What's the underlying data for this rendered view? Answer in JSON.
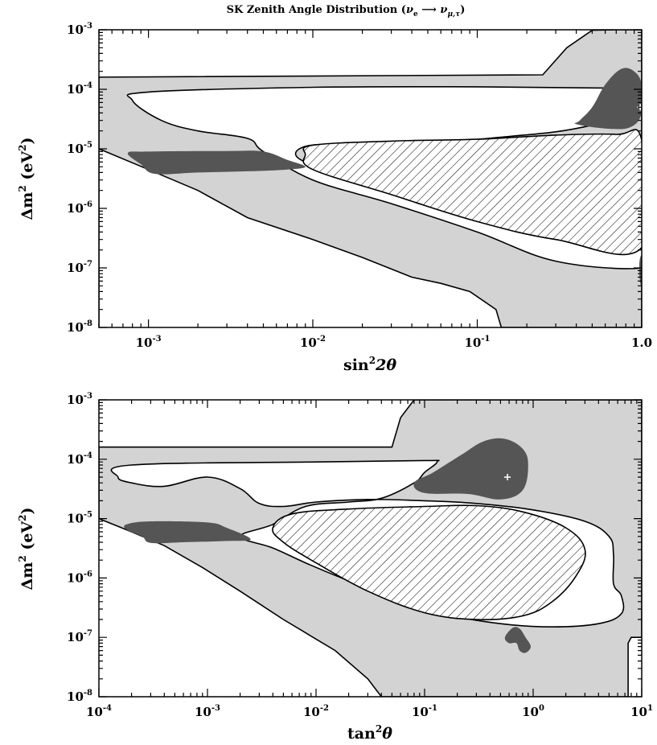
{
  "colors": {
    "light_region": "#d3d3d3",
    "dark_region": "#555555",
    "line": "#000000",
    "background": "#ffffff"
  },
  "chart_data": [
    {
      "type": "area",
      "title": "SK Zenith Angle Distribution (ν_e ⟶ ν_μ,τ)",
      "title_parts": {
        "prefix": "SK Zenith Angle Distribution (",
        "nu": "ν",
        "e": "e",
        "mu_tau": "μ,τ",
        "suffix": ")"
      },
      "xlabel": {
        "base": "sin",
        "sup": "2",
        "rest": "2θ"
      },
      "ylabel": {
        "base": "Δm",
        "sup1": "2",
        "unit_open": " (eV",
        "sup2": "2",
        "unit_close": ")"
      },
      "x_scale": "log",
      "y_scale": "log",
      "xlim": [
        0.0005,
        1
      ],
      "ylim": [
        1e-08,
        0.001
      ],
      "x_ticks": [
        {
          "value": 0.001,
          "base": "10",
          "exp": "-3"
        },
        {
          "value": 0.01,
          "base": "10",
          "exp": "-2"
        },
        {
          "value": 0.1,
          "base": "10",
          "exp": "-1"
        },
        {
          "value": 1,
          "base": "1",
          "exp": "0",
          "text": "1.0"
        }
      ],
      "y_ticks": [
        {
          "value": 1e-08,
          "exp": "-8"
        },
        {
          "value": 1e-07,
          "exp": "-7"
        },
        {
          "value": 1e-06,
          "exp": "-6"
        },
        {
          "value": 1e-05,
          "exp": "-5"
        },
        {
          "value": 0.0001,
          "exp": "-4"
        },
        {
          "value": 0.001,
          "exp": "-3"
        }
      ],
      "best_fit": {
        "x": 0.98,
        "y": 5e-05
      },
      "gray_region": [
        [
          0.0005,
          1e-08
        ],
        [
          0.0005,
          0.00016
        ],
        [
          0.25,
          0.000175
        ],
        [
          0.35,
          0.0005
        ],
        [
          0.5,
          0.00098
        ],
        [
          0.7,
          0.001
        ],
        [
          1,
          0.001
        ],
        [
          1,
          1e-08
        ],
        [
          0.14,
          1e-08
        ],
        [
          0.13,
          2e-08
        ],
        [
          0.09,
          4e-08
        ],
        [
          0.06,
          5.5e-08
        ],
        [
          0.04,
          7e-08
        ],
        [
          0.02,
          1.5e-07
        ],
        [
          0.01,
          3e-07
        ],
        [
          0.004,
          7e-07
        ],
        [
          0.002,
          2e-06
        ],
        [
          0.001,
          4.5e-06
        ],
        [
          0.0005,
          1e-05
        ]
      ],
      "white_hole": [
        [
          0.0008,
          6.5e-05
        ],
        [
          0.001,
          9e-05
        ],
        [
          0.01,
          0.000108
        ],
        [
          0.1,
          0.00011
        ],
        [
          0.6,
          0.000105
        ],
        [
          1,
          0.0001
        ],
        [
          1,
          4.5e-05
        ],
        [
          0.4,
          2.2e-05
        ],
        [
          0.15,
          1.6e-05
        ],
        [
          0.06,
          1.3e-05
        ],
        [
          0.02,
          1.2e-05
        ],
        [
          0.009,
          1.1e-05
        ],
        [
          0.009,
          6e-06
        ],
        [
          0.03,
          2.7e-06
        ],
        [
          0.1,
          9e-07
        ],
        [
          0.3,
          3.3e-07
        ],
        [
          1,
          2e-07
        ],
        [
          1,
          1e-07
        ],
        [
          0.3,
          1.3e-07
        ],
        [
          0.1,
          4e-07
        ],
        [
          0.03,
          1.2e-06
        ],
        [
          0.01,
          3e-06
        ],
        [
          0.005,
          9e-06
        ],
        [
          0.004,
          1.5e-05
        ],
        [
          0.002,
          2e-05
        ],
        [
          0.0012,
          3e-05
        ]
      ],
      "hatched_region": [
        [
          0.009,
          8e-06
        ],
        [
          0.01,
          1.15e-05
        ],
        [
          0.03,
          1.35e-05
        ],
        [
          0.1,
          1.45e-05
        ],
        [
          0.3,
          1.7e-05
        ],
        [
          0.7,
          1.75e-05
        ],
        [
          1,
          1.4e-05
        ],
        [
          1,
          2.2e-07
        ],
        [
          0.3,
          3e-07
        ],
        [
          0.1,
          6e-07
        ],
        [
          0.03,
          1.7e-06
        ],
        [
          0.01,
          4.5e-06
        ]
      ],
      "dark_regions": [
        [
          [
            0.00075,
            8.5e-06
          ],
          [
            0.001,
            9e-06
          ],
          [
            0.003,
            9.2e-06
          ],
          [
            0.005,
            9e-06
          ],
          [
            0.007,
            6.5e-06
          ],
          [
            0.009,
            5e-06
          ],
          [
            0.007,
            4.5e-06
          ],
          [
            0.004,
            4.2e-06
          ],
          [
            0.002,
            4e-06
          ],
          [
            0.0011,
            3.8e-06
          ],
          [
            0.0009,
            5.5e-06
          ]
        ],
        [
          [
            0.42,
            3e-05
          ],
          [
            0.5,
            5e-05
          ],
          [
            0.6,
            0.00012
          ],
          [
            0.75,
            0.00022
          ],
          [
            0.9,
            0.0002
          ],
          [
            1,
            0.00012
          ],
          [
            1,
            4e-05
          ],
          [
            0.85,
            2.3e-05
          ],
          [
            0.6,
            2.2e-05
          ],
          [
            0.4,
            2.6e-05
          ]
        ],
        [
          [
            0.97,
            1.3e-07
          ],
          [
            1,
            1.5e-07
          ],
          [
            1,
            5e-08
          ],
          [
            0.97,
            7e-08
          ]
        ]
      ]
    },
    {
      "type": "area",
      "xlabel": {
        "base": "tan",
        "sup": "2",
        "rest": "θ"
      },
      "ylabel": {
        "base": "Δm",
        "sup1": "2",
        "unit_open": " (eV",
        "sup2": "2",
        "unit_close": ")"
      },
      "x_scale": "log",
      "y_scale": "log",
      "xlim": [
        0.0001,
        10
      ],
      "ylim": [
        1e-08,
        0.001
      ],
      "x_ticks": [
        {
          "value": 0.0001,
          "base": "10",
          "exp": "-4"
        },
        {
          "value": 0.001,
          "base": "10",
          "exp": "-3"
        },
        {
          "value": 0.01,
          "base": "10",
          "exp": "-2"
        },
        {
          "value": 0.1,
          "base": "10",
          "exp": "-1"
        },
        {
          "value": 1,
          "base": "10",
          "exp": "0"
        },
        {
          "value": 10,
          "base": "10",
          "exp": "1"
        }
      ],
      "y_ticks": [
        {
          "value": 1e-08,
          "exp": "-8"
        },
        {
          "value": 1e-07,
          "exp": "-7"
        },
        {
          "value": 1e-06,
          "exp": "-6"
        },
        {
          "value": 1e-05,
          "exp": "-5"
        },
        {
          "value": 0.0001,
          "exp": "-4"
        },
        {
          "value": 0.001,
          "exp": "-3"
        }
      ],
      "best_fit": {
        "x": 0.58,
        "y": 5e-05
      },
      "gray_region": [
        [
          0.0001,
          1e-05
        ],
        [
          0.0001,
          0.00016
        ],
        [
          0.05,
          0.00016
        ],
        [
          0.06,
          0.0005
        ],
        [
          0.08,
          0.001
        ],
        [
          10,
          0.001
        ],
        [
          10,
          1e-07
        ],
        [
          8,
          1e-07
        ],
        [
          7.5,
          8e-08
        ],
        [
          7.5,
          1e-08
        ],
        [
          0.04,
          1e-08
        ],
        [
          0.03,
          2e-08
        ],
        [
          0.015,
          6e-08
        ],
        [
          0.005,
          2e-07
        ],
        [
          0.002,
          6e-07
        ],
        [
          0.0009,
          1.5e-06
        ],
        [
          0.0004,
          3.5e-06
        ],
        [
          0.0002,
          6e-06
        ]
      ],
      "white_hole": [
        [
          0.00015,
          5e-05
        ],
        [
          0.0002,
          8e-05
        ],
        [
          0.01,
          9e-05
        ],
        [
          0.1,
          9.5e-05
        ],
        [
          0.13,
          9e-05
        ],
        [
          0.1,
          6e-05
        ],
        [
          0.08,
          4e-05
        ],
        [
          0.04,
          2.2e-05
        ],
        [
          0.02,
          1.9e-05
        ],
        [
          0.008,
          1.6e-05
        ],
        [
          0.004,
          8e-06
        ],
        [
          0.002,
          5e-06
        ],
        [
          0.004,
          3.2e-06
        ],
        [
          0.008,
          1.8e-06
        ],
        [
          0.02,
          9e-07
        ],
        [
          0.06,
          4.5e-07
        ],
        [
          0.15,
          2.5e-07
        ],
        [
          0.5,
          1.7e-07
        ],
        [
          1.5,
          1.5e-07
        ],
        [
          4,
          1.7e-07
        ],
        [
          6.5,
          2.5e-07
        ],
        [
          6.5,
          5e-07
        ],
        [
          5.5,
          8e-07
        ],
        [
          5.5,
          2.5e-06
        ],
        [
          5,
          5e-06
        ],
        [
          3,
          9e-06
        ],
        [
          1,
          1.4e-05
        ],
        [
          0.3,
          1.8e-05
        ],
        [
          0.1,
          2e-05
        ],
        [
          0.03,
          2.1e-05
        ],
        [
          0.01,
          1.9e-05
        ],
        [
          0.005,
          1.6e-05
        ],
        [
          0.003,
          1.8e-05
        ],
        [
          0.002,
          3.2e-05
        ],
        [
          0.001,
          5e-05
        ],
        [
          0.0004,
          3.5e-05
        ],
        [
          0.0002,
          4e-05
        ]
      ],
      "hatched_region": [
        [
          0.004,
          7e-06
        ],
        [
          0.006,
          1.2e-05
        ],
        [
          0.02,
          1.45e-05
        ],
        [
          0.1,
          1.6e-05
        ],
        [
          0.3,
          1.65e-05
        ],
        [
          0.8,
          1.3e-05
        ],
        [
          2,
          7e-06
        ],
        [
          3,
          3e-06
        ],
        [
          2.5,
          1.1e-06
        ],
        [
          1.5,
          4e-07
        ],
        [
          0.8,
          2.3e-07
        ],
        [
          0.3,
          2e-07
        ],
        [
          0.1,
          2.6e-07
        ],
        [
          0.03,
          6e-07
        ],
        [
          0.01,
          1.8e-06
        ],
        [
          0.005,
          4e-06
        ]
      ],
      "dark_regions": [
        [
          [
            0.00018,
            8e-06
          ],
          [
            0.0003,
            9e-06
          ],
          [
            0.001,
            8.6e-06
          ],
          [
            0.0015,
            7e-06
          ],
          [
            0.0025,
            4.5e-06
          ],
          [
            0.0015,
            4.2e-06
          ],
          [
            0.0006,
            4e-06
          ],
          [
            0.0003,
            3.9e-06
          ],
          [
            0.00025,
            5e-06
          ],
          [
            0.00018,
            6.5e-06
          ]
        ],
        [
          [
            0.08,
            4e-05
          ],
          [
            0.12,
            6e-05
          ],
          [
            0.22,
            0.00012
          ],
          [
            0.35,
            0.0002
          ],
          [
            0.55,
            0.00022
          ],
          [
            0.8,
            0.00015
          ],
          [
            0.9,
            8e-05
          ],
          [
            0.8,
            3e-05
          ],
          [
            0.5,
            2.1e-05
          ],
          [
            0.25,
            2.6e-05
          ],
          [
            0.1,
            2.7e-05
          ]
        ],
        [
          [
            0.55,
            1e-07
          ],
          [
            0.65,
            1.45e-07
          ],
          [
            0.75,
            1.4e-07
          ],
          [
            0.85,
            1e-07
          ],
          [
            0.95,
            7e-08
          ],
          [
            0.85,
            5.5e-08
          ],
          [
            0.75,
            6e-08
          ],
          [
            0.7,
            8e-08
          ],
          [
            0.6,
            8e-08
          ]
        ]
      ]
    }
  ]
}
